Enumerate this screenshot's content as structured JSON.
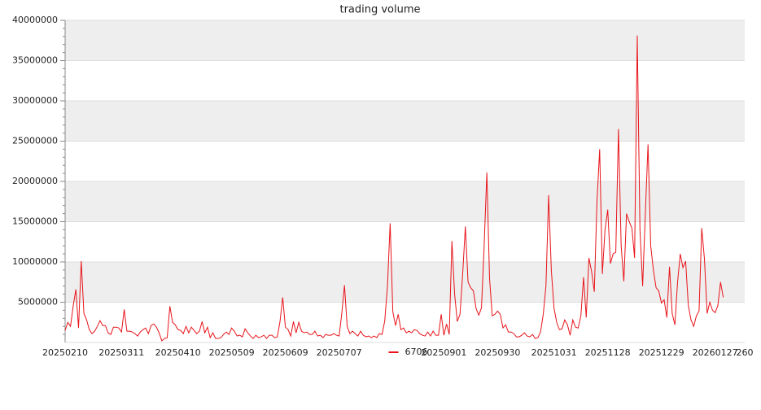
{
  "chart_data": {
    "type": "line",
    "title": "trading volume",
    "series": [
      {
        "name": "6706",
        "color": "#e8141a",
        "values": [
          1500000,
          2500000,
          2000000,
          4500000,
          6600000,
          1800000,
          10100000,
          3600000,
          2800000,
          1600000,
          1100000,
          1400000,
          2000000,
          2700000,
          2100000,
          2100000,
          1200000,
          1000000,
          1900000,
          1900000,
          1800000,
          1300000,
          4100000,
          1400000,
          1400000,
          1300000,
          1100000,
          800000,
          1300000,
          1600000,
          1800000,
          1100000,
          2100000,
          2300000,
          1900000,
          1200000,
          200000,
          500000,
          600000,
          4500000,
          2500000,
          2200000,
          1600000,
          1500000,
          1100000,
          2000000,
          1200000,
          1900000,
          1500000,
          1100000,
          1400000,
          2600000,
          1200000,
          1900000,
          600000,
          1200000,
          500000,
          500000,
          600000,
          1000000,
          1300000,
          1000000,
          1800000,
          1400000,
          800000,
          900000,
          700000,
          1700000,
          1200000,
          800000,
          500000,
          900000,
          600000,
          700000,
          900000,
          500000,
          900000,
          900000,
          600000,
          700000,
          2600000,
          5600000,
          1900000,
          1600000,
          800000,
          2600000,
          1200000,
          2500000,
          1400000,
          1200000,
          1300000,
          1000000,
          1000000,
          1400000,
          800000,
          900000,
          600000,
          1000000,
          900000,
          900000,
          1100000,
          900000,
          800000,
          3600000,
          7100000,
          2000000,
          1100000,
          1400000,
          1100000,
          800000,
          1400000,
          900000,
          700000,
          800000,
          600000,
          800000,
          600000,
          1100000,
          1000000,
          2700000,
          7000000,
          14800000,
          3800000,
          2100000,
          3500000,
          1600000,
          1800000,
          1200000,
          1400000,
          1200000,
          1600000,
          1500000,
          1100000,
          900000,
          800000,
          1300000,
          800000,
          1400000,
          900000,
          900000,
          3500000,
          900000,
          2300000,
          1000000,
          12600000,
          6000000,
          2600000,
          3500000,
          8500000,
          14400000,
          7500000,
          6800000,
          6400000,
          4200000,
          3400000,
          4300000,
          12000000,
          21100000,
          8000000,
          3300000,
          3500000,
          3900000,
          3500000,
          1800000,
          2200000,
          1300000,
          1300000,
          1100000,
          700000,
          700000,
          900000,
          1200000,
          800000,
          700000,
          1000000,
          500000,
          600000,
          1300000,
          3500000,
          7000000,
          18300000,
          9000000,
          4300000,
          2500000,
          1600000,
          1700000,
          2800000,
          2200000,
          900000,
          2800000,
          1900000,
          1800000,
          3300000,
          8100000,
          3100000,
          10500000,
          8800000,
          6300000,
          17500000,
          24000000,
          8500000,
          14000000,
          16500000,
          9800000,
          11000000,
          11200000,
          26500000,
          12000000,
          7600000,
          16000000,
          15000000,
          14200000,
          10500000,
          38100000,
          14000000,
          7000000,
          16000000,
          24600000,
          12000000,
          9000000,
          6800000,
          6400000,
          4900000,
          5300000,
          3100000,
          9400000,
          3600000,
          2200000,
          7500000,
          11000000,
          9300000,
          10100000,
          4600000,
          2800000,
          2000000,
          3300000,
          3900000,
          14200000,
          10400000,
          3600000,
          5000000,
          4000000,
          3700000,
          4600000,
          7500000,
          5600000
        ]
      }
    ],
    "xlim": [
      0,
      253
    ],
    "xticks": [
      {
        "value": 0,
        "label": "20250210"
      },
      {
        "value": 21,
        "label": "20250311"
      },
      {
        "value": 42,
        "label": "20250410"
      },
      {
        "value": 62,
        "label": "20250509"
      },
      {
        "value": 82,
        "label": "20250609"
      },
      {
        "value": 102,
        "label": "20250707"
      },
      {
        "value": 141,
        "label": "20250901"
      },
      {
        "value": 161,
        "label": "20250930"
      },
      {
        "value": 182,
        "label": "20251031"
      },
      {
        "value": 202,
        "label": "20251128"
      },
      {
        "value": 222,
        "label": "20251229"
      },
      {
        "value": 242,
        "label": "20260127"
      },
      {
        "value": 253,
        "label": "260"
      }
    ],
    "ylim": [
      0,
      40000000
    ],
    "yticks": [
      5000000,
      10000000,
      15000000,
      20000000,
      25000000,
      30000000,
      35000000,
      40000000
    ],
    "grid": true,
    "legend": "bottom"
  }
}
